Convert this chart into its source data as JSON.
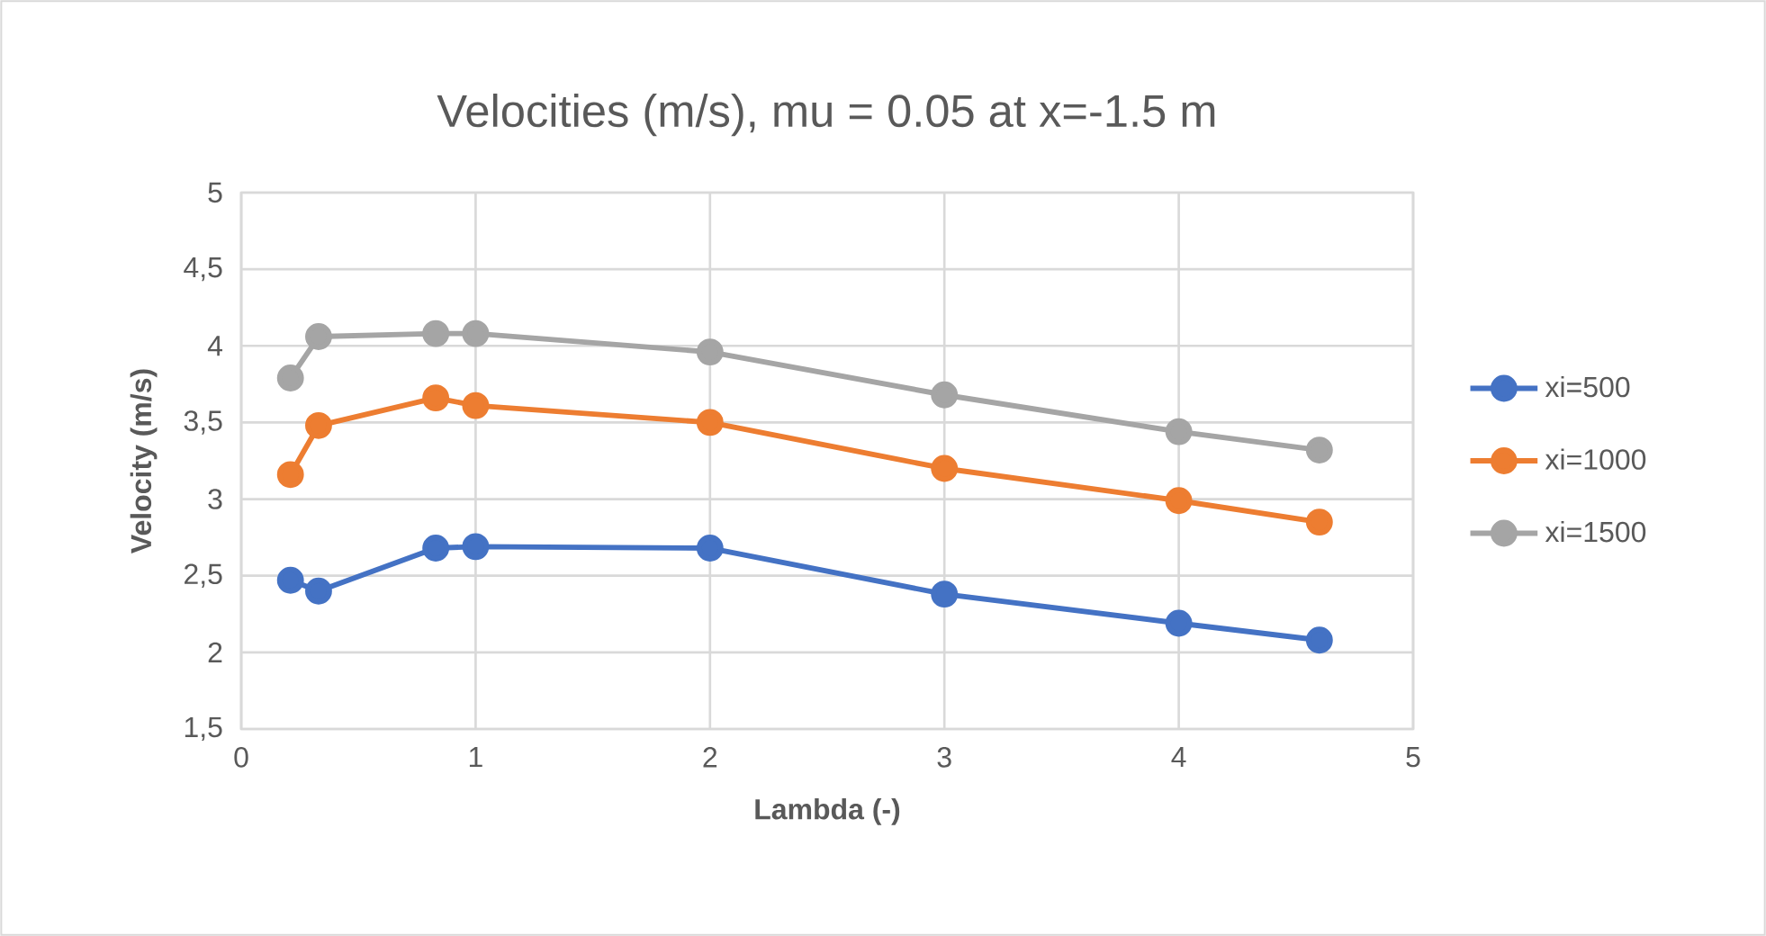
{
  "chart_data": {
    "type": "line",
    "title": "Velocities (m/s), mu = 0.05 at x=-1.5 m",
    "xlabel": "Lambda (-)",
    "ylabel": "Velocity (m/s)",
    "x": [
      0.21,
      0.33,
      0.83,
      1,
      2,
      3,
      4,
      4.6
    ],
    "series": [
      {
        "name": "xi=500",
        "color": "#4472c4",
        "values": [
          2.47,
          2.4,
          2.68,
          2.69,
          2.68,
          2.38,
          2.19,
          2.08
        ]
      },
      {
        "name": "xi=1000",
        "color": "#ed7d31",
        "values": [
          3.16,
          3.48,
          3.66,
          3.61,
          3.5,
          3.2,
          2.99,
          2.85
        ]
      },
      {
        "name": "xi=1500",
        "color": "#a5a5a5",
        "values": [
          3.79,
          4.06,
          4.08,
          4.08,
          3.96,
          3.68,
          3.44,
          3.32
        ]
      }
    ],
    "xlim": [
      0,
      5
    ],
    "xticks": [
      0,
      1,
      2,
      3,
      4,
      5
    ],
    "ylim": [
      1.5,
      5
    ],
    "yticks": [
      {
        "value": 1.5,
        "label": "1,5"
      },
      2,
      {
        "value": 2.5,
        "label": "2,5"
      },
      3,
      {
        "value": 3.5,
        "label": "3,5"
      },
      4,
      {
        "value": 4.5,
        "label": "4,5"
      },
      5
    ],
    "grid": true,
    "legend": "right",
    "marker": "circle",
    "line_style": "solid"
  }
}
